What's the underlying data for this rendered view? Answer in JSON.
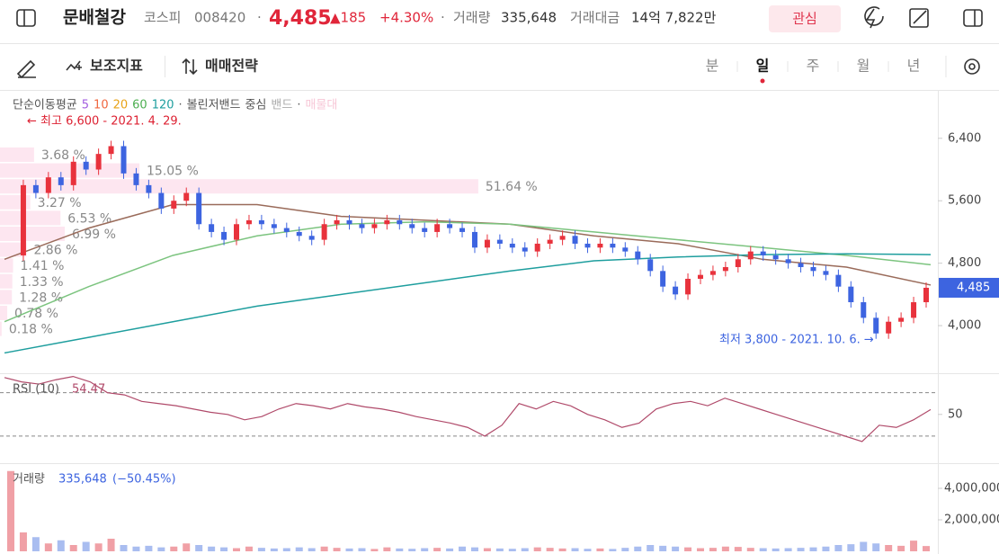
{
  "header": {
    "name": "문배철강",
    "market": "코스피",
    "code": "008420",
    "sep1": "·",
    "price": "4,485",
    "change": "▲185",
    "change_pct": "+4.30%",
    "sep2": "·",
    "volume_label": "거래량",
    "volume": "335,648",
    "turnover_label": "거래대금",
    "turnover": "14억 7,822만",
    "watch_button": "관심"
  },
  "toolbar": {
    "indicators": "보조지표",
    "strategy": "매매전략",
    "periods": [
      "분",
      "일",
      "주",
      "월",
      "년"
    ],
    "selected_period": 1
  },
  "chart_data": [
    {
      "type": "candlestick",
      "legend": [
        "단순이동평균",
        "5",
        "10",
        "20",
        "60",
        "120",
        "·",
        "볼린저밴드",
        "중심",
        "밴드",
        "·",
        "매물대"
      ],
      "legend_colors": [
        "#555",
        "#a35ee0",
        "#f0663e",
        "#e8a317",
        "#4caf50",
        "#1e9e9e",
        "#555",
        "#555",
        "#555",
        "#aaa",
        "#555",
        "#f7c6d6"
      ],
      "high_annotation": "← 최고 6,600 - 2021. 4. 29.",
      "low_annotation": "최저 3,800 - 2021. 10. 6. →",
      "ylim": [
        3390,
        7020
      ],
      "yticks": [
        {
          "value": 6400,
          "label": "6,400"
        },
        {
          "value": 5600,
          "label": "5,600"
        },
        {
          "value": 4800,
          "label": "4,800"
        },
        {
          "value": 4000,
          "label": "4,000"
        }
      ],
      "current_price": {
        "value": 4485,
        "label": "4,485"
      },
      "up_color": "#e8323c",
      "down_color": "#3d64e0",
      "values": [
        4900,
        5800,
        5700,
        5900,
        5800,
        6100,
        6000,
        6200,
        6300,
        5950,
        5800,
        5700,
        5500,
        5600,
        5700,
        5300,
        5200,
        5100,
        5300,
        5350,
        5300,
        5250,
        5200,
        5150,
        5100,
        5300,
        5350,
        5300,
        5250,
        5300,
        5350,
        5300,
        5250,
        5200,
        5300,
        5250,
        5200,
        5000,
        5100,
        5050,
        5000,
        4950,
        5050,
        5100,
        5150,
        5050,
        5000,
        5050,
        5000,
        4950,
        4850,
        4700,
        4500,
        4400,
        4600,
        4650,
        4700,
        4750,
        4850,
        4950,
        4900,
        4850,
        4800,
        4750,
        4700,
        4650,
        4500,
        4300,
        4100,
        3900,
        4050,
        4100,
        4300,
        4485
      ],
      "series": [
        {
          "color": "#9a6b5a",
          "values": [
            4850,
            5250,
            5550,
            5550,
            5400,
            5350,
            5300,
            5150,
            5050,
            4850,
            4750,
            4520
          ]
        },
        {
          "color": "#7cc47f",
          "values": [
            4050,
            4500,
            4900,
            5150,
            5300,
            5330,
            5300,
            5200,
            5100,
            5000,
            4900,
            4780
          ]
        },
        {
          "color": "#1e9e9e",
          "values": [
            3650,
            3850,
            4050,
            4250,
            4400,
            4550,
            4700,
            4830,
            4880,
            4910,
            4920,
            4910
          ]
        }
      ],
      "volume_profile": {
        "color": "#fde3ee",
        "values": [
          3.68,
          15.05,
          51.64,
          3.27,
          6.53,
          6.99,
          2.86,
          1.41,
          1.33,
          1.28,
          0.78,
          0.18
        ],
        "value_labels": [
          "3.68 %",
          "15.05 %",
          "51.64 %",
          "3.27 %",
          "6.53 %",
          "6.99 %",
          "2.86 %",
          "1.41 %",
          "1.33 %",
          "1.28 %",
          "0.78 %",
          "0.18 %"
        ]
      }
    },
    {
      "type": "line",
      "title": "RSI (10)",
      "last_value": 54.47,
      "color": "#b04a6a",
      "ylim": [
        5,
        88
      ],
      "yticks": [
        50
      ],
      "guides": [
        70,
        30
      ],
      "values": [
        84,
        80,
        78,
        82,
        85,
        80,
        70,
        68,
        62,
        60,
        58,
        55,
        52,
        50,
        45,
        48,
        55,
        60,
        58,
        55,
        60,
        57,
        55,
        52,
        48,
        45,
        42,
        38,
        30,
        40,
        60,
        55,
        62,
        58,
        50,
        45,
        38,
        42,
        55,
        60,
        62,
        58,
        65,
        60,
        55,
        50,
        45,
        40,
        35,
        30,
        25,
        40,
        38,
        45,
        54.47
      ]
    },
    {
      "type": "bar",
      "title": "거래량",
      "last_value": "335,648",
      "change_label": "(−50.45%)",
      "ylim": [
        0,
        5600000
      ],
      "yticks": [
        {
          "value": 4000000,
          "label": "4,000,000"
        },
        {
          "value": 2000000,
          "label": "2,000,000"
        }
      ],
      "up_color": "#f0a0a6",
      "down_color": "#a9bdf0",
      "values": [
        5100000,
        1200000,
        900000,
        500000,
        700000,
        400000,
        600000,
        500000,
        800000,
        400000,
        300000,
        350000,
        250000,
        300000,
        500000,
        400000,
        300000,
        250000,
        200000,
        300000,
        220000,
        180000,
        200000,
        250000,
        200000,
        300000,
        220000,
        180000,
        200000,
        150000,
        250000,
        180000,
        160000,
        200000,
        220000,
        180000,
        300000,
        250000,
        200000,
        180000,
        160000,
        200000,
        250000,
        220000,
        180000,
        200000,
        160000,
        180000,
        150000,
        220000,
        300000,
        400000,
        350000,
        300000,
        250000,
        200000,
        220000,
        300000,
        280000,
        220000,
        200000,
        180000,
        200000,
        220000,
        250000,
        300000,
        400000,
        450000,
        600000,
        500000,
        400000,
        350000,
        678000,
        335648
      ]
    }
  ]
}
